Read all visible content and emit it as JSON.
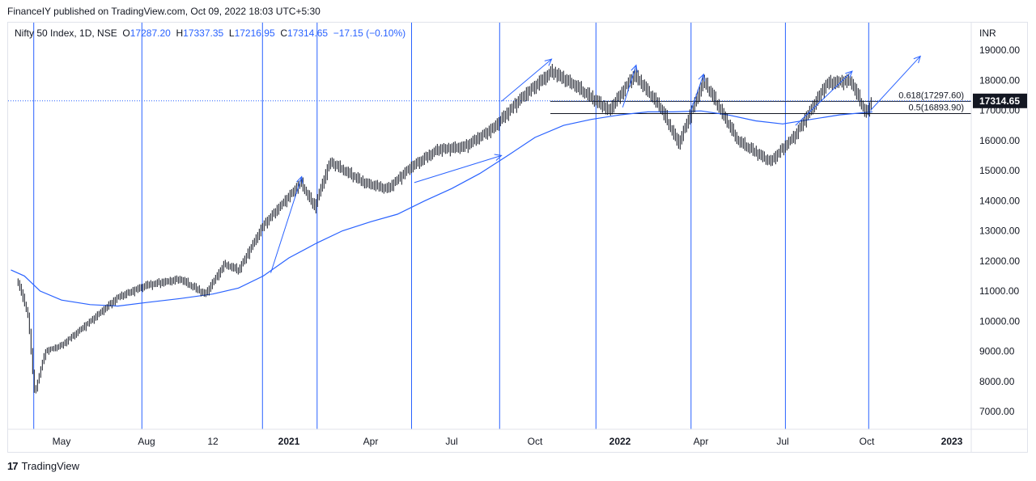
{
  "header": {
    "publish_note": "FinanceIY published on TradingView.com, Oct 09, 2022 18:03 UTC+5:30"
  },
  "legend": {
    "symbol": "Nifty 50 Index, 1D, NSE",
    "open_label": "O",
    "open": "17287.20",
    "high_label": "H",
    "high": "17337.35",
    "low_label": "L",
    "low": "17216.95",
    "close_label": "C",
    "close": "17314.65",
    "change": "−17.15 (−0.10%)"
  },
  "footer": {
    "brand": "TradingView",
    "logo_icon": "tradingview-logo-icon"
  },
  "colors": {
    "accent": "#2962ff",
    "candle": "#131722",
    "ma": "#2962ff",
    "price_badge": "#131722"
  },
  "chart_data": {
    "type": "line",
    "currency": "INR",
    "xlabels": [
      "May",
      "Aug",
      "12",
      "2021",
      "Apr",
      "Jul",
      "Oct",
      "2022",
      "Apr",
      "Jul",
      "Oct",
      "2023"
    ],
    "ylim": [
      6600,
      19600
    ],
    "yticks": [
      "19000.00",
      "18000.00",
      "17000.00",
      "16000.00",
      "15000.00",
      "14000.00",
      "13000.00",
      "12000.00",
      "11000.00",
      "10000.00",
      "9000.00",
      "8000.00",
      "7000.00"
    ],
    "last_price": "17314.65",
    "fib_levels": [
      {
        "label": "0.618(17297.60)",
        "value": 17297.6
      },
      {
        "label": "0.5(16893.90)",
        "value": 16893.9
      }
    ],
    "price_series": {
      "name": "Nifty 50 Index",
      "x": [
        "2020-03-01",
        "2020-03-15",
        "2020-03-24",
        "2020-04-08",
        "2020-05-01",
        "2020-06-01",
        "2020-07-01",
        "2020-08-01",
        "2020-09-01",
        "2020-09-24",
        "2020-10-15",
        "2020-11-01",
        "2020-12-01",
        "2021-01-14",
        "2021-01-29",
        "2021-02-15",
        "2021-03-25",
        "2021-04-20",
        "2021-05-15",
        "2021-06-15",
        "2021-07-15",
        "2021-08-15",
        "2021-09-15",
        "2021-10-19",
        "2021-11-15",
        "2021-12-20",
        "2022-01-17",
        "2022-02-15",
        "2022-03-07",
        "2022-04-04",
        "2022-05-12",
        "2022-06-17",
        "2022-07-15",
        "2022-08-18",
        "2022-09-13",
        "2022-09-30",
        "2022-10-07"
      ],
      "y": [
        11300,
        10200,
        7600,
        9000,
        9200,
        10000,
        10800,
        11200,
        11400,
        10900,
        11900,
        11700,
        13200,
        14600,
        13800,
        15300,
        14600,
        14400,
        15100,
        15700,
        15800,
        16400,
        17400,
        18300,
        17800,
        17000,
        18200,
        17100,
        15900,
        18000,
        16000,
        15300,
        16200,
        17900,
        18000,
        16900,
        17314.65
      ]
    },
    "ma_series": {
      "name": "Moving average",
      "x": [
        "2020-02-20",
        "2020-03-10",
        "2020-04-01",
        "2020-05-01",
        "2020-06-01",
        "2020-07-01",
        "2020-08-01",
        "2020-09-01",
        "2020-10-01",
        "2020-11-01",
        "2020-12-01",
        "2021-01-01",
        "2021-02-01",
        "2021-03-01",
        "2021-04-01",
        "2021-05-01",
        "2021-06-01",
        "2021-07-01",
        "2021-08-01",
        "2021-09-01",
        "2021-10-01",
        "2021-11-01",
        "2021-12-01",
        "2022-01-01",
        "2022-02-01",
        "2022-03-01",
        "2022-04-01",
        "2022-05-01",
        "2022-06-01",
        "2022-07-01",
        "2022-08-01",
        "2022-09-01",
        "2022-10-07"
      ],
      "y": [
        11700,
        11500,
        11000,
        10700,
        10550,
        10500,
        10620,
        10750,
        10900,
        11100,
        11500,
        12100,
        12600,
        13000,
        13300,
        13550,
        14000,
        14400,
        14900,
        15500,
        16100,
        16500,
        16700,
        16850,
        16950,
        16950,
        16980,
        16850,
        16650,
        16550,
        16700,
        16850,
        16950
      ]
    },
    "vertical_markers": [
      "2020-03-23",
      "2020-07-27",
      "2020-11-30",
      "2021-02-01",
      "2021-05-17",
      "2021-08-23",
      "2021-12-06",
      "2022-03-21",
      "2022-07-04",
      "2022-10-03"
    ],
    "trend_arrows": [
      {
        "from": [
          "2020-12-10",
          11600
        ],
        "to": [
          "2021-01-15",
          14800
        ]
      },
      {
        "from": [
          "2021-05-20",
          14600
        ],
        "to": [
          "2021-08-25",
          15500
        ]
      },
      {
        "from": [
          "2021-08-25",
          17300
        ],
        "to": [
          "2021-10-19",
          18700
        ]
      },
      {
        "from": [
          "2022-01-04",
          17100
        ],
        "to": [
          "2022-01-19",
          18500
        ]
      },
      {
        "from": [
          "2022-03-21",
          17000
        ],
        "to": [
          "2022-04-04",
          18200
        ]
      },
      {
        "from": [
          "2022-07-15",
          16500
        ],
        "to": [
          "2022-09-15",
          18300
        ]
      },
      {
        "from": [
          "2022-10-05",
          17000
        ],
        "to": [
          "2022-11-28",
          18800
        ]
      }
    ]
  }
}
